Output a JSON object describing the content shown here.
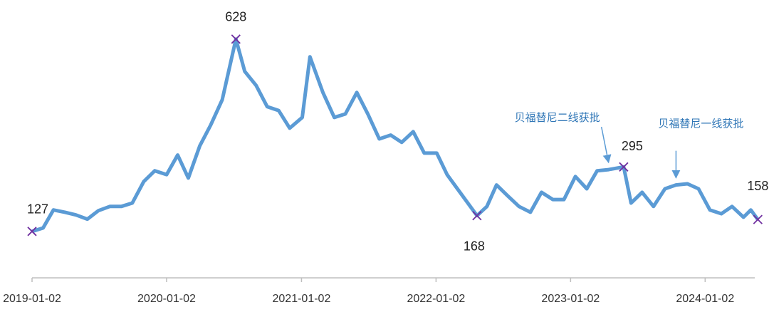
{
  "chart_data": {
    "type": "line",
    "x": [
      "2019-01-02",
      "2019-02-01",
      "2019-03-01",
      "2019-04-01",
      "2019-05-01",
      "2019-06-01",
      "2019-07-01",
      "2019-08-01",
      "2019-09-01",
      "2019-10-01",
      "2019-11-01",
      "2019-12-01",
      "2020-01-02",
      "2020-02-01",
      "2020-03-01",
      "2020-04-01",
      "2020-05-01",
      "2020-06-01",
      "2020-07-08",
      "2020-08-01",
      "2020-09-01",
      "2020-10-01",
      "2020-11-01",
      "2020-12-01",
      "2021-01-04",
      "2021-01-25",
      "2021-03-01",
      "2021-04-01",
      "2021-05-01",
      "2021-06-01",
      "2021-07-01",
      "2021-08-01",
      "2021-09-01",
      "2021-10-01",
      "2021-11-01",
      "2021-12-01",
      "2022-01-04",
      "2022-02-01",
      "2022-03-01",
      "2022-04-23",
      "2022-05-20",
      "2022-06-15",
      "2022-07-15",
      "2022-08-15",
      "2022-09-15",
      "2022-10-15",
      "2022-11-15",
      "2022-12-15",
      "2023-01-15",
      "2023-02-15",
      "2023-03-15",
      "2023-04-15",
      "2023-05-26",
      "2023-06-15",
      "2023-07-15",
      "2023-08-15",
      "2023-09-15",
      "2023-10-15",
      "2023-11-15",
      "2023-12-15",
      "2024-01-15",
      "2024-02-15",
      "2024-03-15",
      "2024-04-15",
      "2024-05-05",
      "2024-05-24"
    ],
    "values": [
      127,
      136,
      183,
      177,
      170,
      159,
      181,
      192,
      192,
      201,
      257,
      285,
      275,
      326,
      266,
      350,
      405,
      470,
      628,
      544,
      507,
      452,
      442,
      396,
      424,
      582,
      489,
      424,
      433,
      489,
      433,
      368,
      378,
      359,
      387,
      331,
      331,
      275,
      238,
      168,
      192,
      248,
      220,
      192,
      177,
      229,
      210,
      210,
      270,
      238,
      285,
      288,
      295,
      201,
      229,
      192,
      238,
      248,
      251,
      238,
      183,
      173,
      192,
      164,
      183,
      158
    ],
    "color": "#5b9bd5",
    "ylim": [
      6,
      730
    ],
    "xlim": [
      "2019-01-02",
      "2024-06-02"
    ],
    "xticks": [
      "2019-01-02",
      "2020-01-02",
      "2021-01-02",
      "2022-01-02",
      "2023-01-02",
      "2024-01-02"
    ],
    "markers": {
      "x": [
        "2019-01-02",
        "2020-07-08",
        "2022-04-23",
        "2023-05-26",
        "2024-05-24"
      ],
      "values": [
        127,
        628,
        168,
        295,
        158
      ],
      "color": "#7030a0"
    },
    "annotations": [
      {
        "text": "贝福替尼二线获批",
        "x": "2023-04-15"
      },
      {
        "text": "贝福替尼一线获批",
        "x": "2023-10-15"
      }
    ]
  }
}
